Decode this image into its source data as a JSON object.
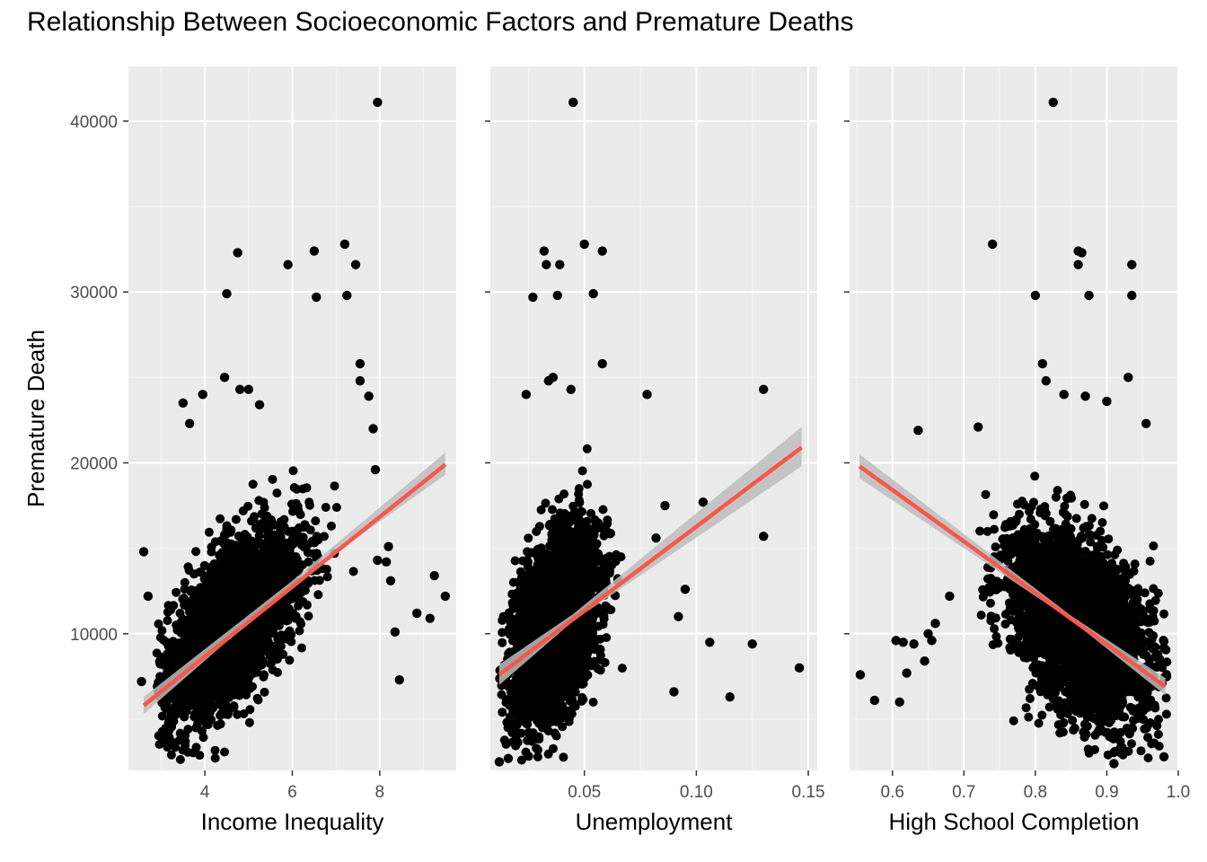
{
  "title": "Relationship Between Socioeconomic Factors and Premature Deaths",
  "colors": {
    "panel_bg": "#EBEBEB",
    "grid_major": "#FFFFFF",
    "grid_minor": "#F5F5F5",
    "point": "#000000",
    "fit_line": "#F8574A",
    "ci_band": "#BDBDBD",
    "tick_text": "#4D4D4D",
    "axis_title": "#000000"
  },
  "chart_data": {
    "type": "scatter",
    "grid": true,
    "smoothing": "linear fit with confidence band",
    "y_axis": {
      "label": "Premature Death",
      "ylim": [
        2000,
        43200
      ],
      "ticks": [
        10000,
        20000,
        30000,
        40000
      ],
      "tick_labels": [
        "10000",
        "20000",
        "30000",
        "40000"
      ]
    },
    "panels": [
      {
        "xlabel": "Income Inequality",
        "xlim": [
          2.25,
          9.75
        ],
        "x_ticks": [
          4,
          6,
          8
        ],
        "x_tick_labels": [
          "4",
          "6",
          "8"
        ],
        "x_minor_ticks": [
          3,
          5,
          7,
          9
        ],
        "fit": {
          "x": [
            2.6,
            9.5
          ],
          "y": [
            5800,
            19900
          ]
        },
        "ci": {
          "x": [
            2.6,
            6.0,
            9.5
          ],
          "lower": [
            5300,
            12900,
            19300
          ],
          "upper": [
            6300,
            13100,
            20600
          ]
        },
        "point_cloud": {
          "cx": 4.6,
          "cy": 10500,
          "sx": 0.75,
          "sy": 2700,
          "r": 0.6,
          "xmin": 2.9,
          "xmax": 8.5,
          "ymin": 2500,
          "ymax": 21000,
          "n": 3000
        },
        "outliers": [
          [
            7.95,
            41100
          ],
          [
            4.75,
            32300
          ],
          [
            7.2,
            32800
          ],
          [
            6.5,
            32400
          ],
          [
            7.45,
            31600
          ],
          [
            5.9,
            31600
          ],
          [
            4.5,
            29900
          ],
          [
            7.25,
            29800
          ],
          [
            6.55,
            29700
          ],
          [
            7.55,
            25800
          ],
          [
            7.55,
            24800
          ],
          [
            4.45,
            25000
          ],
          [
            7.75,
            23900
          ],
          [
            4.8,
            24300
          ],
          [
            5.0,
            24300
          ],
          [
            3.5,
            23500
          ],
          [
            3.95,
            24000
          ],
          [
            3.65,
            22300
          ],
          [
            7.85,
            22000
          ],
          [
            5.25,
            23400
          ],
          [
            8.85,
            11200
          ],
          [
            9.25,
            13400
          ],
          [
            9.5,
            12200
          ],
          [
            9.15,
            10900
          ],
          [
            8.35,
            10100
          ],
          [
            8.45,
            7300
          ],
          [
            2.6,
            14800
          ],
          [
            2.7,
            12200
          ],
          [
            2.55,
            7200
          ],
          [
            7.9,
            19600
          ],
          [
            7.95,
            14300
          ],
          [
            8.15,
            14200
          ],
          [
            8.2,
            15100
          ],
          [
            8.25,
            13100
          ]
        ]
      },
      {
        "xlabel": "Unemployment",
        "xlim": [
          0.008,
          0.154
        ],
        "x_ticks": [
          0.05,
          0.1,
          0.15
        ],
        "x_tick_labels": [
          "0.05",
          "0.10",
          "0.15"
        ],
        "x_minor_ticks": [
          0.025,
          0.075,
          0.125
        ],
        "fit": {
          "x": [
            0.012,
            0.147
          ],
          "y": [
            7600,
            20900
          ]
        },
        "ci": {
          "x": [
            0.012,
            0.045,
            0.147
          ],
          "lower": [
            7000,
            10750,
            19800
          ],
          "upper": [
            8200,
            11150,
            22100
          ]
        },
        "point_cloud": {
          "cx": 0.037,
          "cy": 10500,
          "sx": 0.0095,
          "sy": 2700,
          "r": 0.45,
          "xmin": 0.012,
          "xmax": 0.075,
          "ymin": 2500,
          "ymax": 22000,
          "n": 3000
        },
        "outliers": [
          [
            0.045,
            41100
          ],
          [
            0.05,
            32800
          ],
          [
            0.032,
            32400
          ],
          [
            0.058,
            32400
          ],
          [
            0.033,
            31600
          ],
          [
            0.039,
            31600
          ],
          [
            0.027,
            29700
          ],
          [
            0.038,
            29800
          ],
          [
            0.054,
            29900
          ],
          [
            0.058,
            25800
          ],
          [
            0.034,
            24800
          ],
          [
            0.036,
            25000
          ],
          [
            0.044,
            24300
          ],
          [
            0.078,
            24000
          ],
          [
            0.024,
            24000
          ],
          [
            0.13,
            24300
          ],
          [
            0.103,
            17700
          ],
          [
            0.13,
            15700
          ],
          [
            0.095,
            12600
          ],
          [
            0.092,
            11000
          ],
          [
            0.106,
            9500
          ],
          [
            0.125,
            9400
          ],
          [
            0.146,
            8000
          ],
          [
            0.115,
            6300
          ],
          [
            0.09,
            6600
          ],
          [
            0.082,
            15600
          ],
          [
            0.086,
            17500
          ],
          [
            0.012,
            2500
          ],
          [
            0.016,
            2700
          ]
        ]
      },
      {
        "xlabel": "High School Completion",
        "xlim": [
          0.54,
          1.0
        ],
        "x_ticks": [
          0.6,
          0.7,
          0.8,
          0.9,
          1.0
        ],
        "x_tick_labels": [
          "0.6",
          "0.7",
          "0.8",
          "0.9",
          "1.0"
        ],
        "x_minor_ticks": [
          0.55,
          0.65,
          0.75,
          0.85,
          0.95
        ],
        "fit": {
          "x": [
            0.554,
            0.982
          ],
          "y": [
            19800,
            6900
          ]
        },
        "ci": {
          "x": [
            0.554,
            0.85,
            0.982
          ],
          "lower": [
            19100,
            10800,
            6400
          ],
          "upper": [
            20500,
            11050,
            7400
          ]
        },
        "point_cloud": {
          "cx": 0.86,
          "cy": 10500,
          "sx": 0.05,
          "sy": 2700,
          "r": -0.45,
          "xmin": 0.72,
          "xmax": 0.985,
          "ymin": 2500,
          "ymax": 22000,
          "n": 3000
        },
        "outliers": [
          [
            0.825,
            41100
          ],
          [
            0.74,
            32800
          ],
          [
            0.86,
            32400
          ],
          [
            0.865,
            32300
          ],
          [
            0.935,
            31600
          ],
          [
            0.86,
            31600
          ],
          [
            0.8,
            29800
          ],
          [
            0.875,
            29800
          ],
          [
            0.935,
            29800
          ],
          [
            0.81,
            25800
          ],
          [
            0.815,
            24800
          ],
          [
            0.93,
            25000
          ],
          [
            0.84,
            24000
          ],
          [
            0.87,
            23900
          ],
          [
            0.9,
            23600
          ],
          [
            0.955,
            22300
          ],
          [
            0.636,
            21900
          ],
          [
            0.555,
            7600
          ],
          [
            0.575,
            6100
          ],
          [
            0.61,
            6000
          ],
          [
            0.605,
            9600
          ],
          [
            0.615,
            9500
          ],
          [
            0.63,
            9400
          ],
          [
            0.62,
            7700
          ],
          [
            0.645,
            8400
          ],
          [
            0.65,
            10000
          ],
          [
            0.655,
            9600
          ],
          [
            0.66,
            10600
          ],
          [
            0.68,
            12200
          ],
          [
            0.72,
            22100
          ],
          [
            0.98,
            2800
          ],
          [
            0.91,
            2400
          ]
        ]
      }
    ]
  }
}
